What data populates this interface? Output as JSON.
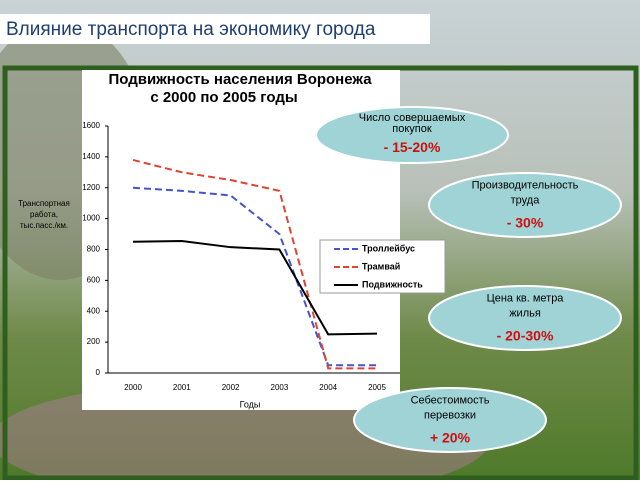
{
  "slide_title": "Влияние транспорта на экономику города",
  "chart_data": {
    "type": "line",
    "title": "Подвижность населения Воронежа",
    "subtitle": "с 2000 по 2005 годы",
    "ylabel": [
      "Транспортная",
      "работа,",
      "тыс.пасс./км."
    ],
    "xlabel": "Годы",
    "categories": [
      "2000",
      "2001",
      "2002",
      "2003",
      "2004",
      "2005"
    ],
    "series": [
      {
        "name": "Троллейбус",
        "color": "#4455cc",
        "dash": true,
        "values": [
          1200,
          1180,
          1150,
          900,
          50,
          50
        ]
      },
      {
        "name": "Трамвай",
        "color": "#dd4433",
        "dash": true,
        "values": [
          1380,
          1300,
          1250,
          1180,
          30,
          30
        ]
      },
      {
        "name": "Подвижность",
        "color": "#000000",
        "dash": false,
        "values": [
          850,
          855,
          815,
          800,
          250,
          255
        ]
      }
    ],
    "ylim": [
      0,
      1600
    ],
    "yticks": [
      0,
      200,
      400,
      600,
      800,
      1000,
      1200,
      1400,
      1600
    ]
  },
  "callouts": [
    {
      "label": [
        "Число совершаемых",
        "покупок"
      ],
      "value": "- 15-20%"
    },
    {
      "label": [
        "Производительность",
        "труда"
      ],
      "value": "- 30%"
    },
    {
      "label": [
        "Цена кв. метра",
        "жилья"
      ],
      "value": "- 20-30%"
    },
    {
      "label": [
        "Себестоимость",
        "перевозки"
      ],
      "value": "+ 20%"
    }
  ]
}
